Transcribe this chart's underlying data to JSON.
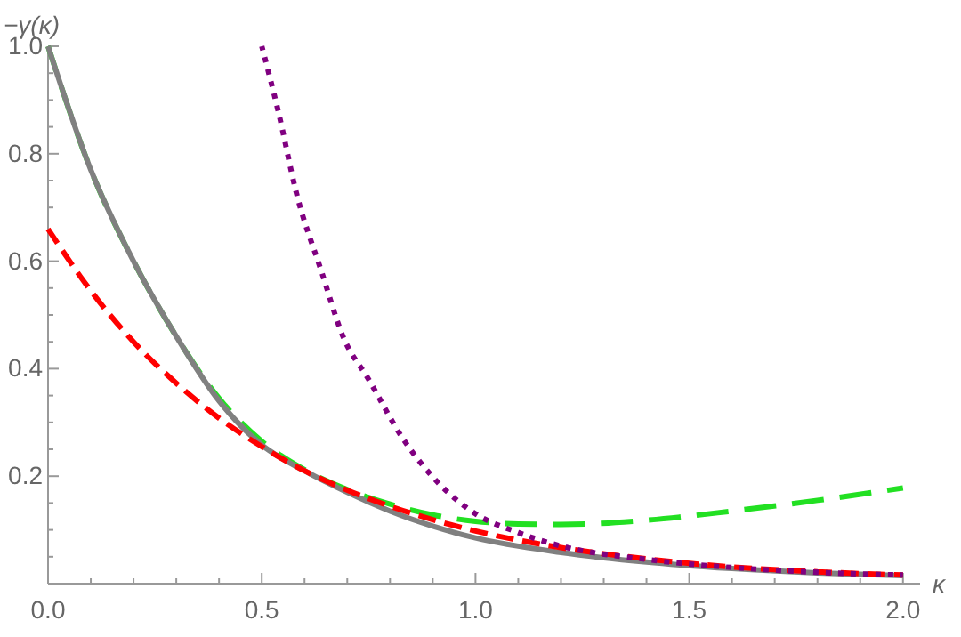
{
  "chart_data": {
    "type": "line",
    "xlabel": "κ",
    "ylabel": "−γ(κ)",
    "xlim": [
      0,
      2.04
    ],
    "ylim": [
      0,
      1.0
    ],
    "xticks": [
      {
        "value": 0,
        "label": "0.0"
      },
      {
        "value": 0.1,
        "label": null
      },
      {
        "value": 0.2,
        "label": null
      },
      {
        "value": 0.3,
        "label": null
      },
      {
        "value": 0.4,
        "label": null
      },
      {
        "value": 0.5,
        "label": "0.5"
      },
      {
        "value": 0.6,
        "label": null
      },
      {
        "value": 0.7,
        "label": null
      },
      {
        "value": 0.8,
        "label": null
      },
      {
        "value": 0.9,
        "label": null
      },
      {
        "value": 1.0,
        "label": "1.0"
      },
      {
        "value": 1.1,
        "label": null
      },
      {
        "value": 1.2,
        "label": null
      },
      {
        "value": 1.3,
        "label": null
      },
      {
        "value": 1.4,
        "label": null
      },
      {
        "value": 1.5,
        "label": "1.5"
      },
      {
        "value": 1.6,
        "label": null
      },
      {
        "value": 1.7,
        "label": null
      },
      {
        "value": 1.8,
        "label": null
      },
      {
        "value": 1.9,
        "label": null
      },
      {
        "value": 2.0,
        "label": "2.0"
      }
    ],
    "yticks": [
      {
        "value": 0.05,
        "label": null
      },
      {
        "value": 0.1,
        "label": null
      },
      {
        "value": 0.15,
        "label": null
      },
      {
        "value": 0.2,
        "label": "0.2"
      },
      {
        "value": 0.25,
        "label": null
      },
      {
        "value": 0.3,
        "label": null
      },
      {
        "value": 0.35,
        "label": null
      },
      {
        "value": 0.4,
        "label": "0.4"
      },
      {
        "value": 0.45,
        "label": null
      },
      {
        "value": 0.5,
        "label": null
      },
      {
        "value": 0.55,
        "label": null
      },
      {
        "value": 0.6,
        "label": "0.6"
      },
      {
        "value": 0.65,
        "label": null
      },
      {
        "value": 0.7,
        "label": null
      },
      {
        "value": 0.75,
        "label": null
      },
      {
        "value": 0.8,
        "label": "0.8"
      },
      {
        "value": 0.85,
        "label": null
      },
      {
        "value": 0.9,
        "label": null
      },
      {
        "value": 0.95,
        "label": null
      },
      {
        "value": 1.0,
        "label": "1.0"
      }
    ],
    "series": [
      {
        "color": "#22e022",
        "line_style": "dashed",
        "x": [
          0,
          0.1,
          0.2,
          0.3,
          0.4,
          0.5,
          0.6,
          0.7,
          0.8,
          0.9,
          1.0,
          1.1,
          1.2,
          1.4,
          1.6,
          1.8,
          2.0
        ],
        "values": [
          1.0,
          0.77,
          0.6,
          0.46,
          0.345,
          0.265,
          0.212,
          0.175,
          0.148,
          0.128,
          0.116,
          0.111,
          0.11,
          0.118,
          0.135,
          0.155,
          0.178
        ]
      },
      {
        "color": "#808080",
        "line_style": "solid",
        "x": [
          0,
          0.1,
          0.2,
          0.3,
          0.4,
          0.5,
          0.6,
          0.7,
          0.8,
          0.9,
          1.0,
          1.2,
          1.4,
          1.6,
          1.8,
          2.0
        ],
        "values": [
          1.0,
          0.77,
          0.6,
          0.46,
          0.34,
          0.258,
          0.21,
          0.17,
          0.135,
          0.107,
          0.085,
          0.058,
          0.04,
          0.028,
          0.02,
          0.015
        ]
      },
      {
        "color": "#ff0000",
        "line_style": "dashed",
        "x": [
          0,
          0.1,
          0.2,
          0.3,
          0.4,
          0.5,
          0.6,
          0.7,
          0.8,
          0.9,
          1.0,
          1.2,
          1.4,
          1.6,
          1.8,
          2.0
        ],
        "values": [
          0.66,
          0.545,
          0.45,
          0.373,
          0.308,
          0.255,
          0.21,
          0.174,
          0.144,
          0.119,
          0.098,
          0.067,
          0.046,
          0.031,
          0.022,
          0.016
        ]
      },
      {
        "color": "#800080",
        "line_style": "dotted",
        "x": [
          0.5,
          0.54,
          0.58,
          0.64,
          0.69,
          0.75,
          0.83,
          0.91,
          1.0,
          1.1,
          1.2,
          1.4,
          1.6,
          1.8,
          2.0
        ],
        "values": [
          1.0,
          0.874,
          0.73,
          0.58,
          0.46,
          0.38,
          0.27,
          0.19,
          0.13,
          0.095,
          0.07,
          0.045,
          0.03,
          0.021,
          0.016
        ]
      }
    ]
  }
}
